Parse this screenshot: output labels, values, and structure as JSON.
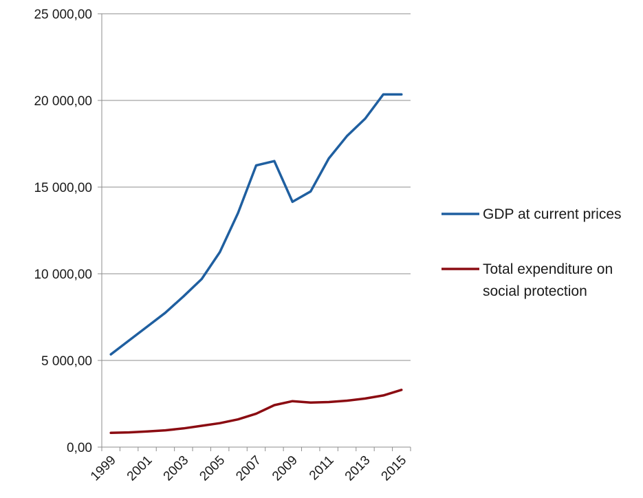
{
  "chart_data": {
    "type": "line",
    "x": [
      1999,
      2000,
      2001,
      2002,
      2003,
      2004,
      2005,
      2006,
      2007,
      2008,
      2009,
      2010,
      2011,
      2012,
      2013,
      2014,
      2015
    ],
    "x_tick_labels": [
      "1999",
      "2001",
      "2003",
      "2005",
      "2007",
      "2009",
      "2011",
      "2013",
      "2015"
    ],
    "y_tick_labels": [
      "0,00",
      "5 000,00",
      "10 000,00",
      "15 000,00",
      "20 000,00",
      "25 000,00"
    ],
    "ylim": [
      0,
      25000
    ],
    "grid": true,
    "legend_position": "right",
    "series": [
      {
        "name": "GDP at current prices",
        "color": "#1f5fa0",
        "values": [
          5350,
          6150,
          6950,
          7750,
          8700,
          9700,
          11250,
          13500,
          16250,
          16500,
          14150,
          14750,
          16650,
          17950,
          18950,
          20350,
          20350
        ]
      },
      {
        "name": "Total expenditure on social protection",
        "legend_lines": [
          "Total expenditure on",
          "social protection"
        ],
        "color": "#8b0c12",
        "values": [
          820,
          850,
          900,
          970,
          1080,
          1230,
          1380,
          1600,
          1930,
          2420,
          2650,
          2570,
          2600,
          2680,
          2800,
          2980,
          3300
        ]
      }
    ]
  }
}
